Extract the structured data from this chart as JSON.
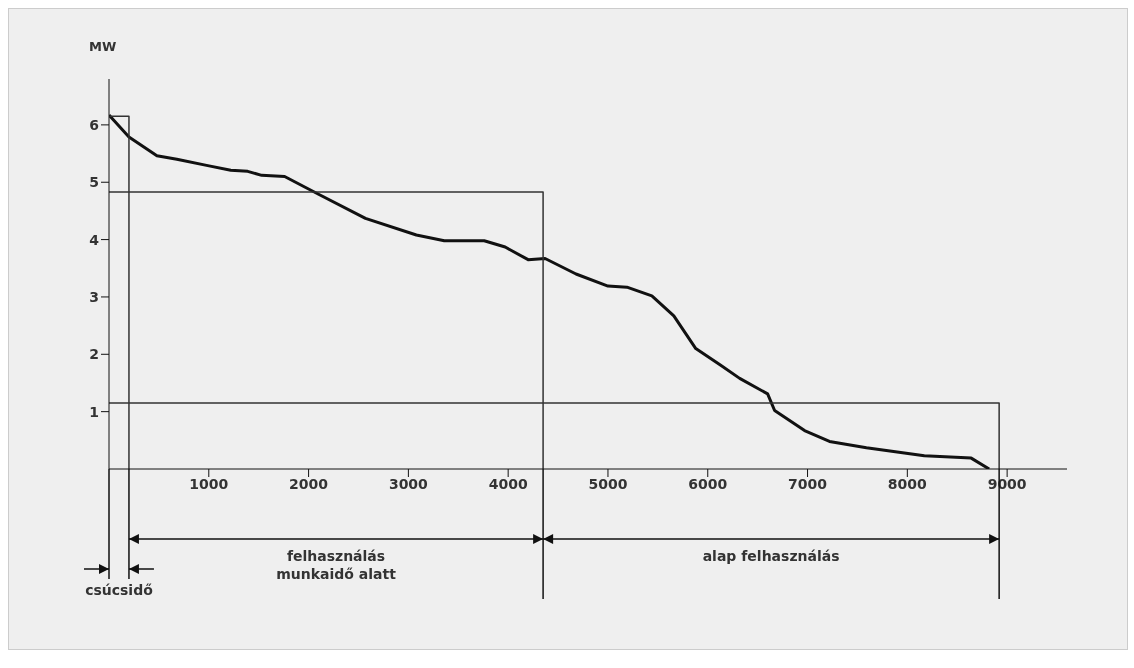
{
  "chart_data": {
    "type": "line",
    "ylabel": "MW",
    "xlim": [
      0,
      9600
    ],
    "ylim": [
      0,
      6.8
    ],
    "xticks": [
      1000,
      2000,
      3000,
      4000,
      5000,
      6000,
      7000,
      8000,
      9000
    ],
    "yticks": [
      1,
      2,
      3,
      4,
      5,
      6
    ],
    "grid": false,
    "marker": "none",
    "line_style": "solid",
    "series": [
      {
        "color": "#111111",
        "x": [
          0,
          200,
          480,
          680,
          990,
          1220,
          1390,
          1530,
          1760,
          2100,
          2570,
          3080,
          3360,
          3760,
          3970,
          4200,
          4370,
          4680,
          5000,
          5190,
          5440,
          5660,
          5880,
          6130,
          6320,
          6600,
          6670,
          6970,
          7220,
          7590,
          8170,
          8640,
          8820
        ],
        "values": [
          6.17,
          5.79,
          5.46,
          5.4,
          5.29,
          5.21,
          5.19,
          5.12,
          5.1,
          4.79,
          4.37,
          4.08,
          3.98,
          3.98,
          3.87,
          3.65,
          3.67,
          3.4,
          3.19,
          3.17,
          3.02,
          2.67,
          2.1,
          1.81,
          1.58,
          1.31,
          1.02,
          0.67,
          0.48,
          0.37,
          0.23,
          0.19,
          0
        ]
      },
      {
        "color": "#333333",
        "x": [
          0,
          200,
          200
        ],
        "values": [
          6.15,
          6.15,
          0
        ]
      },
      {
        "color": "#333333",
        "x": [
          0,
          4350,
          4350
        ],
        "values": [
          4.83,
          4.83,
          0
        ]
      },
      {
        "color": "#333333",
        "x": [
          0,
          8920,
          8920
        ],
        "values": [
          1.15,
          1.15,
          0
        ]
      }
    ],
    "annotations": [
      "csúcsidő",
      "felhasználás munkaidő alatt",
      "alap felhasználás"
    ]
  }
}
